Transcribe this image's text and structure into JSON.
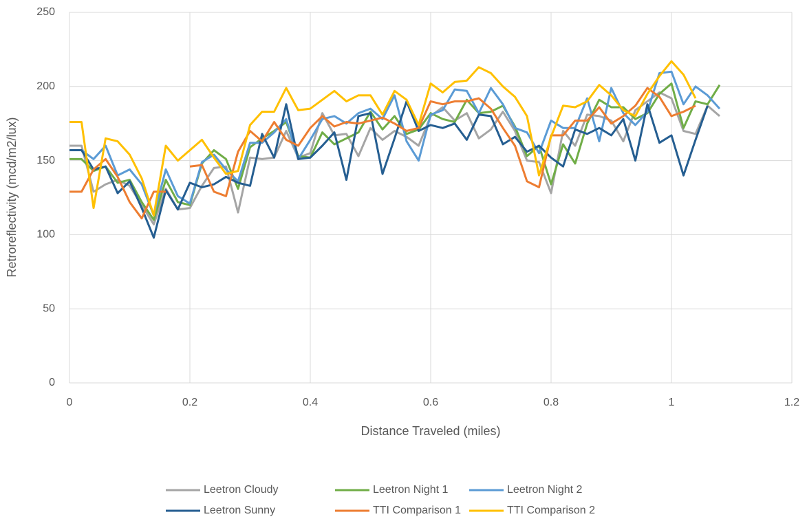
{
  "chart_data": {
    "type": "line",
    "x_label": "Distance Traveled (miles)",
    "y_label": "Retroreflectivity (mcd/m2/lux)",
    "x": [
      0,
      0.02,
      0.04,
      0.06,
      0.08,
      0.1,
      0.12,
      0.14,
      0.16,
      0.18,
      0.2,
      0.22,
      0.24,
      0.26,
      0.28,
      0.3,
      0.32,
      0.34,
      0.36,
      0.38,
      0.4,
      0.42,
      0.44,
      0.46,
      0.48,
      0.5,
      0.52,
      0.54,
      0.56,
      0.58,
      0.6,
      0.62,
      0.64,
      0.66,
      0.68,
      0.7,
      0.72,
      0.74,
      0.76,
      0.78,
      0.8,
      0.82,
      0.84,
      0.86,
      0.88,
      0.9,
      0.92,
      0.94,
      0.96,
      0.98,
      1,
      1.02,
      1.04,
      1.06,
      1.08
    ],
    "series": [
      {
        "name": "Leetron Cloudy",
        "color": "#a5a5a5",
        "values": [
          160,
          160,
          129,
          134,
          137,
          133,
          120,
          107,
          131,
          117,
          118,
          133,
          145,
          146,
          115,
          152,
          151,
          152,
          170,
          152,
          155,
          182,
          167,
          168,
          153,
          172,
          164,
          170,
          166,
          160,
          180,
          186,
          177,
          182,
          165,
          171,
          183,
          170,
          150,
          149,
          128,
          170,
          160,
          181,
          180,
          177,
          163,
          184,
          190,
          196,
          192,
          170,
          168,
          187,
          180
        ]
      },
      {
        "name": "Leetron Night 1",
        "color": "#70ad47",
        "values": [
          151,
          151,
          143,
          146,
          135,
          137,
          122,
          110,
          137,
          122,
          120,
          148,
          157,
          151,
          131,
          159,
          165,
          170,
          176,
          153,
          152,
          169,
          161,
          165,
          169,
          183,
          171,
          180,
          168,
          171,
          182,
          178,
          176,
          191,
          182,
          183,
          187,
          173,
          153,
          160,
          134,
          161,
          148,
          175,
          191,
          186,
          186,
          178,
          182,
          195,
          202,
          172,
          190,
          188,
          201
        ]
      },
      {
        "name": "Leetron Night 2",
        "color": "#5b9bd5",
        "values": [
          157,
          157,
          151,
          160,
          140,
          144,
          134,
          113,
          144,
          126,
          121,
          149,
          154,
          144,
          136,
          162,
          162,
          169,
          178,
          151,
          164,
          178,
          180,
          175,
          182,
          185,
          178,
          194,
          163,
          150,
          181,
          184,
          198,
          197,
          182,
          199,
          188,
          172,
          169,
          155,
          177,
          172,
          172,
          192,
          163,
          199,
          182,
          174,
          183,
          209,
          210,
          188,
          200,
          194,
          185
        ]
      },
      {
        "name": "Leetron Sunny",
        "color": "#255e91",
        "values": [
          157,
          157,
          144,
          146,
          128,
          136,
          118,
          98,
          130,
          117,
          135,
          132,
          134,
          139,
          135,
          133,
          168,
          152,
          188,
          151,
          152,
          160,
          169,
          137,
          180,
          182,
          141,
          165,
          190,
          170,
          174,
          172,
          175,
          164,
          181,
          180,
          161,
          166,
          156,
          160,
          152,
          146,
          171,
          168,
          172,
          167,
          178,
          150,
          188,
          162,
          167,
          140,
          164,
          187,
          null
        ]
      },
      {
        "name": "TTI Comparison 1",
        "color": "#ed7d31",
        "values": [
          129,
          129,
          144,
          151,
          139,
          122,
          111,
          129,
          129,
          null,
          146,
          147,
          129,
          126,
          156,
          170,
          163,
          176,
          164,
          160,
          172,
          180,
          173,
          176,
          175,
          177,
          179,
          175,
          170,
          172,
          190,
          188,
          190,
          190,
          192,
          185,
          172,
          160,
          136,
          132,
          167,
          167,
          177,
          177,
          186,
          175,
          180,
          187,
          199,
          193,
          180,
          183,
          187,
          null,
          null
        ]
      },
      {
        "name": "TTI Comparison 2",
        "color": "#ffc000",
        "values": [
          176,
          176,
          118,
          165,
          163,
          154,
          138,
          113,
          160,
          150,
          157,
          164,
          152,
          141,
          143,
          174,
          183,
          183,
          199,
          184,
          185,
          191,
          197,
          190,
          194,
          194,
          181,
          197,
          191,
          174,
          202,
          196,
          203,
          204,
          213,
          209,
          200,
          193,
          180,
          140,
          166,
          187,
          186,
          190,
          201,
          194,
          184,
          180,
          195,
          207,
          217,
          208,
          192,
          null,
          null
        ]
      }
    ],
    "xlim": [
      0,
      1.2
    ],
    "xticks": [
      0,
      0.2,
      0.4,
      0.6,
      0.8,
      1,
      1.2
    ],
    "ylim": [
      0,
      250
    ],
    "yticks": [
      0,
      50,
      100,
      150,
      200,
      250
    ],
    "grid": true,
    "legend": "bottom"
  }
}
